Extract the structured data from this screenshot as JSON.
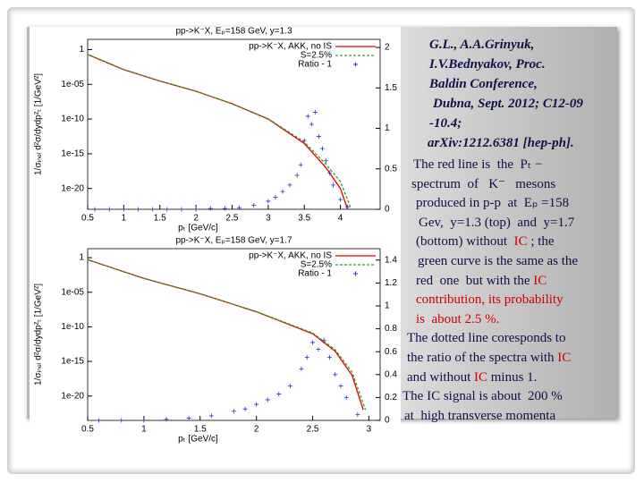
{
  "chart_data": [
    {
      "type": "line",
      "title": "pp->K⁻X, Eₚ=158 GeV, y=1.3",
      "x_label": "pₜ [GeV/c]",
      "y_label": "1/σᵢₙₑₗ d²σ/dydp²ₜ [1/GeV²]",
      "log_y": true,
      "xlim": [
        0.5,
        4.55
      ],
      "xticks": [
        0.5,
        1,
        1.5,
        2,
        2.5,
        3,
        3.5,
        4
      ],
      "ylim": [
        1e-23,
        30
      ],
      "yticks": [
        1,
        {
          "value": 1e-05,
          "label": "1e-05"
        },
        {
          "value": 1e-10,
          "label": "1e-10"
        },
        {
          "value": 1e-15,
          "label": "1e-15"
        },
        {
          "value": 1e-20,
          "label": "1e-20"
        }
      ],
      "y2lim": [
        0,
        2.1
      ],
      "y2ticks": [
        0,
        0.5,
        1,
        1.5,
        2
      ],
      "legend": "upper right",
      "series": [
        {
          "name": "pp->K⁻X, AKK, no IS",
          "color": "#e00000",
          "style": "solid",
          "x": [
            0.5,
            1,
            1.5,
            2,
            2.5,
            3,
            3.5,
            3.8,
            4,
            4.1
          ],
          "values": [
            0.2,
            0.0013,
            3e-05,
            1e-06,
            1.6e-08,
            1e-10,
            3e-14,
            1e-17,
            1e-20,
            1e-23
          ]
        },
        {
          "name": "S=2.5%",
          "color": "#2ea02e",
          "style": "dashed",
          "x": [
            0.5,
            1,
            1.5,
            2,
            2.5,
            3,
            3.5,
            3.8,
            4,
            4.15
          ],
          "values": [
            0.2,
            0.0013,
            3e-05,
            1e-06,
            1.6e-08,
            1.1e-10,
            5e-14,
            3e-17,
            1e-19,
            1e-23
          ]
        },
        {
          "name": "Ratio - 1",
          "color": "#3030c0",
          "style": "points",
          "axis": "y2",
          "x": [
            0.6,
            0.8,
            1,
            1.2,
            1.4,
            1.6,
            1.8,
            2,
            2.2,
            2.4,
            2.6,
            2.8,
            3,
            3.1,
            3.2,
            3.3,
            3.4,
            3.45,
            3.5,
            3.55,
            3.6,
            3.65,
            3.7,
            3.75,
            3.8,
            3.85,
            3.9,
            4,
            4.1
          ],
          "values": [
            0,
            0,
            0,
            0,
            0,
            0,
            0,
            0,
            0.01,
            0.01,
            0.02,
            0.05,
            0.1,
            0.15,
            0.22,
            0.3,
            0.42,
            0.55,
            0.85,
            1.15,
            1.05,
            1.2,
            0.9,
            0.75,
            0.6,
            0.45,
            0.3,
            0.12,
            0.03
          ]
        }
      ]
    },
    {
      "type": "line",
      "title": "pp->K⁻X, Eₚ=158 GeV, y=1.7",
      "x_label": "pₜ [GeV/c]",
      "y_label": "1/σᵢₙₑₗ d²σ/dydp²ₜ [1/GeV²]",
      "log_y": true,
      "xlim": [
        0.5,
        3.1
      ],
      "xticks": [
        0.5,
        1,
        1.5,
        2,
        2.5,
        3
      ],
      "ylim": [
        3e-24,
        20
      ],
      "yticks": [
        1,
        {
          "value": 1e-05,
          "label": "1e-05"
        },
        {
          "value": 1e-10,
          "label": "1e-10"
        },
        {
          "value": 1e-15,
          "label": "1e-15"
        },
        {
          "value": 1e-20,
          "label": "1e-20"
        }
      ],
      "y2lim": [
        0,
        1.5
      ],
      "y2ticks": [
        0,
        0.2,
        0.4,
        0.6,
        0.8,
        1,
        1.2,
        1.4
      ],
      "legend": "upper right",
      "series": [
        {
          "name": "pp->K⁻X, AKK, no IS",
          "color": "#e00000",
          "style": "solid",
          "x": [
            0.5,
            1,
            1.5,
            2,
            2.5,
            2.7,
            2.85,
            2.95
          ],
          "values": [
            0.5,
            0.001,
            6e-06,
            1.5e-08,
            1e-11,
            3e-14,
            1e-17,
            1e-22
          ]
        },
        {
          "name": "S=2.5%",
          "color": "#2ea02e",
          "style": "dashed",
          "x": [
            0.5,
            1,
            1.5,
            2,
            2.5,
            2.7,
            2.85,
            2.97
          ],
          "values": [
            0.5,
            0.001,
            6e-06,
            1.6e-08,
            1.3e-11,
            5e-14,
            3e-17,
            1e-22
          ]
        },
        {
          "name": "Ratio - 1",
          "color": "#3030c0",
          "style": "points",
          "axis": "y2",
          "x": [
            0.6,
            0.8,
            1,
            1.2,
            1.4,
            1.6,
            1.8,
            1.9,
            2,
            2.1,
            2.2,
            2.3,
            2.4,
            2.45,
            2.5,
            2.55,
            2.6,
            2.65,
            2.7,
            2.75,
            2.8,
            2.9
          ],
          "values": [
            0,
            0,
            0,
            0.01,
            0.02,
            0.04,
            0.08,
            0.1,
            0.14,
            0.18,
            0.23,
            0.3,
            0.45,
            0.55,
            0.68,
            0.62,
            0.7,
            0.55,
            0.4,
            0.3,
            0.2,
            0.05
          ]
        }
      ]
    }
  ],
  "reference": [
    "G.L., A.A.Grinyuk,",
    "I.V.Bednyakov, Proc.",
    "Baldin Conference,",
    "Dubna, Sept. 2012; C12-09",
    "-10.4;",
    "arXiv:1212.6381 [hep-ph]."
  ],
  "description": [
    [
      "The red line is  the  Pₜ −"
    ],
    [
      "spectrum  of   K⁻   mesons"
    ],
    [
      "produced in p-p  at  Eₚ =158"
    ],
    [
      "Gev,  y=1.3 (top)  and  y=1.7"
    ],
    [
      "(bottom) without  ",
      {
        "text": "IC",
        "color": "#d00000"
      },
      " ; the"
    ],
    [
      "green curve is the same as the"
    ],
    [
      "red  one  but with the ",
      {
        "text": "IC",
        "color": "#d00000"
      }
    ],
    [
      {
        "text": "contribution, its probability",
        "color": "#d00000"
      }
    ],
    [
      {
        "text": "is  about 2.5 %.",
        "color": "#d00000"
      }
    ],
    [
      "The dotted line coresponds to"
    ],
    [
      "the ratio of the spectra with ",
      {
        "text": "IC",
        "color": "#d00000"
      }
    ],
    [
      "and without ",
      {
        "text": "IC",
        "color": "#d00000"
      },
      " minus 1."
    ],
    [
      "The IC signal is about  200 %"
    ],
    [
      "at  high transverse momenta"
    ]
  ]
}
